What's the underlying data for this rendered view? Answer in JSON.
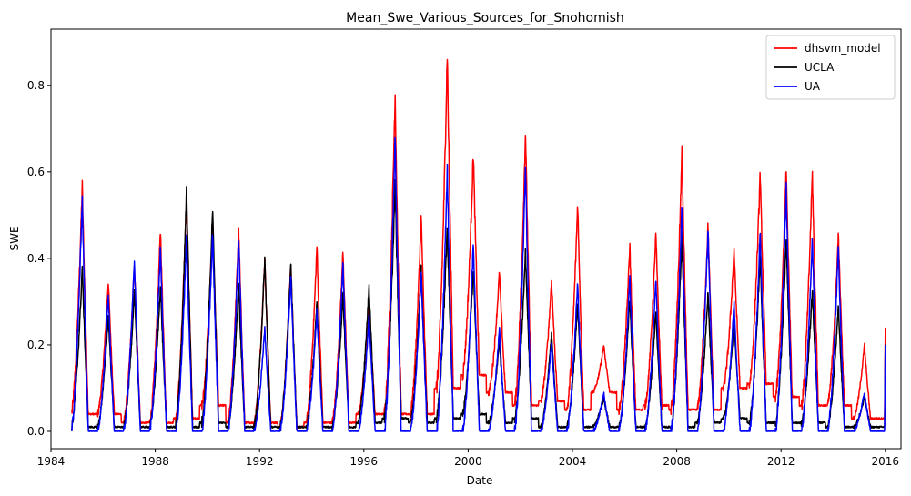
{
  "chart_data": {
    "type": "line",
    "title": "Mean_Swe_Various_Sources_for_Snohomish",
    "xlabel": "Date",
    "ylabel": "SWE",
    "xlim": [
      1984.0,
      2016.6
    ],
    "ylim": [
      -0.04,
      0.93
    ],
    "x_ticks": [
      1984,
      1988,
      1992,
      1996,
      2000,
      2004,
      2008,
      2012,
      2016
    ],
    "y_ticks": [
      "0.0",
      "0.2",
      "0.4",
      "0.6",
      "0.8"
    ],
    "y_tick_values": [
      0.0,
      0.2,
      0.4,
      0.6,
      0.8
    ],
    "grid": false,
    "legend_position": "top-right",
    "x_start": 1984.8,
    "x_end": 2016.0,
    "series": [
      {
        "name": "dhsvm_model",
        "color": "#ff0000",
        "x": [
          1985.2,
          1986.2,
          1987.2,
          1988.2,
          1989.2,
          1990.2,
          1991.2,
          1992.2,
          1993.2,
          1994.2,
          1995.2,
          1996.2,
          1997.2,
          1998.2,
          1999.2,
          2000.2,
          2001.2,
          2002.2,
          2003.2,
          2004.2,
          2005.2,
          2006.2,
          2007.2,
          2008.2,
          2009.2,
          2010.2,
          2011.2,
          2012.2,
          2013.2,
          2014.2,
          2015.2
        ],
        "y": [
          0.57,
          0.35,
          0.39,
          0.47,
          0.55,
          0.49,
          0.47,
          0.4,
          0.39,
          0.43,
          0.42,
          0.31,
          0.79,
          0.5,
          0.88,
          0.65,
          0.37,
          0.7,
          0.35,
          0.53,
          0.2,
          0.43,
          0.46,
          0.65,
          0.48,
          0.42,
          0.6,
          0.61,
          0.6,
          0.46,
          0.2
        ],
        "baseline": [
          0.04,
          0.04,
          0.02,
          0.02,
          0.03,
          0.06,
          0.02,
          0.02,
          0.01,
          0.02,
          0.02,
          0.04,
          0.04,
          0.04,
          0.1,
          0.13,
          0.09,
          0.06,
          0.07,
          0.05,
          0.09,
          0.05,
          0.06,
          0.05,
          0.05,
          0.1,
          0.11,
          0.08,
          0.06,
          0.06,
          0.03
        ],
        "y_end": 0.24
      },
      {
        "name": "UCLA",
        "color": "#000000",
        "x": [
          1985.2,
          1986.2,
          1987.2,
          1988.2,
          1989.2,
          1990.2,
          1991.2,
          1992.2,
          1993.2,
          1994.2,
          1995.2,
          1996.2,
          1997.2,
          1998.2,
          1999.2,
          2000.2,
          2001.2,
          2002.2,
          2003.2,
          2004.2,
          2005.2,
          2006.2,
          2007.2,
          2008.2,
          2009.2,
          2010.2,
          2011.2,
          2012.2,
          2013.2,
          2014.2,
          2015.2
        ],
        "y": [
          0.38,
          0.27,
          0.33,
          0.34,
          0.56,
          0.52,
          0.34,
          0.4,
          0.39,
          0.3,
          0.32,
          0.34,
          0.58,
          0.38,
          0.48,
          0.38,
          0.21,
          0.42,
          0.23,
          0.3,
          0.08,
          0.31,
          0.28,
          0.45,
          0.32,
          0.25,
          0.41,
          0.45,
          0.33,
          0.29,
          0.08
        ],
        "baseline": [
          0.01,
          0.01,
          0.01,
          0.01,
          0.01,
          0.02,
          0.01,
          0.01,
          0.01,
          0.01,
          0.01,
          0.02,
          0.03,
          0.02,
          0.03,
          0.04,
          0.02,
          0.03,
          0.01,
          0.01,
          0.01,
          0.01,
          0.01,
          0.01,
          0.02,
          0.03,
          0.02,
          0.02,
          0.02,
          0.01,
          0.01
        ],
        "y_end": 0.2
      },
      {
        "name": "UA",
        "color": "#0000ff",
        "x": [
          1985.2,
          1986.2,
          1987.2,
          1988.2,
          1989.2,
          1990.2,
          1991.2,
          1992.2,
          1993.2,
          1994.2,
          1995.2,
          1996.2,
          1997.2,
          1998.2,
          1999.2,
          2000.2,
          2001.2,
          2002.2,
          2003.2,
          2004.2,
          2005.2,
          2006.2,
          2007.2,
          2008.2,
          2009.2,
          2010.2,
          2011.2,
          2012.2,
          2013.2,
          2014.2,
          2015.2
        ],
        "y": [
          0.54,
          0.32,
          0.4,
          0.43,
          0.45,
          0.46,
          0.45,
          0.24,
          0.36,
          0.28,
          0.39,
          0.27,
          0.69,
          0.37,
          0.61,
          0.44,
          0.24,
          0.62,
          0.21,
          0.35,
          0.09,
          0.36,
          0.36,
          0.53,
          0.47,
          0.3,
          0.47,
          0.57,
          0.45,
          0.43,
          0.09
        ],
        "baseline": [
          0.0,
          0.0,
          0.0,
          0.0,
          0.0,
          0.0,
          0.0,
          0.0,
          0.0,
          0.0,
          0.0,
          0.0,
          0.0,
          0.0,
          0.0,
          0.0,
          0.0,
          0.0,
          0.0,
          0.0,
          0.0,
          0.0,
          0.0,
          0.0,
          0.0,
          0.0,
          0.0,
          0.0,
          0.0,
          0.0,
          0.0
        ],
        "y_end": 0.2
      }
    ]
  }
}
